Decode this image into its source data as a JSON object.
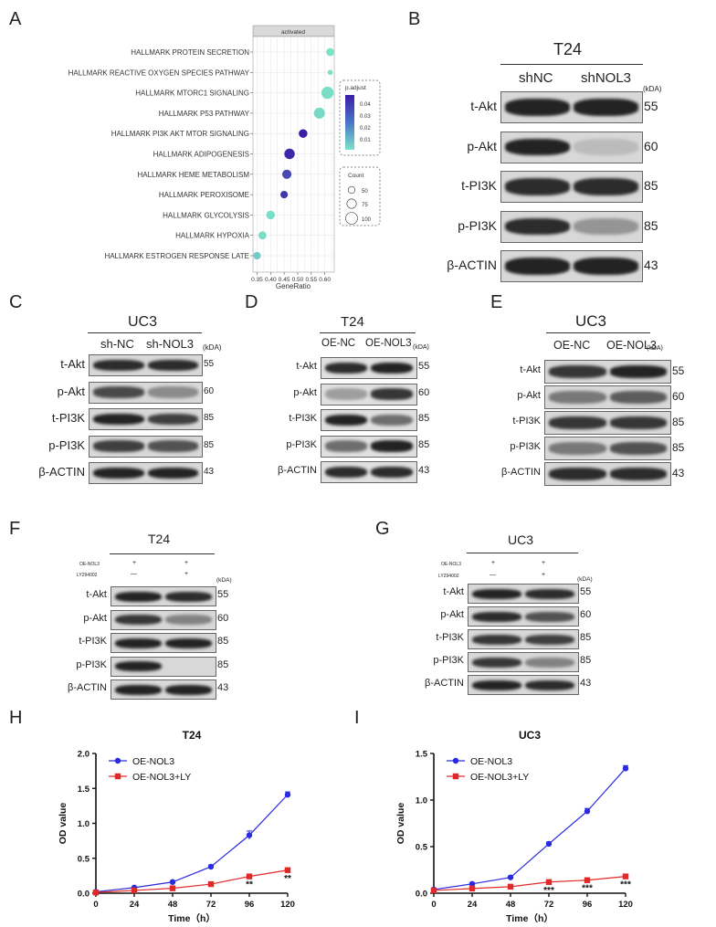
{
  "panels": {
    "A": "A",
    "B": "B",
    "C": "C",
    "D": "D",
    "E": "E",
    "F": "F",
    "G": "G",
    "H": "H",
    "I": "I"
  },
  "dotplot": {
    "facet_title": "activated",
    "pathways": [
      "HALLMARK PROTEIN SECRETION",
      "HALLMARK REACTIVE OXYGEN SPECIES PATHWAY",
      "HALLMARK MTORC1 SIGNALING",
      "HALLMARK P53 PATHWAY",
      "HALLMARK PI3K AKT MTOR SIGNALING",
      "HALLMARK ADIPOGENESIS",
      "HALLMARK HEME METABOLISM",
      "HALLMARK PEROXISOME",
      "HALLMARK GLYCOLYSIS",
      "HALLMARK HYPOXIA",
      "HALLMARK ESTROGEN RESPONSE LATE"
    ],
    "gene_ratio": [
      0.62,
      0.62,
      0.61,
      0.58,
      0.52,
      0.47,
      0.46,
      0.45,
      0.4,
      0.37,
      0.35
    ],
    "count": [
      60,
      35,
      95,
      85,
      65,
      80,
      70,
      55,
      65,
      60,
      55
    ],
    "p_adjust": [
      0.004,
      0.005,
      0.006,
      0.007,
      0.045,
      0.043,
      0.036,
      0.04,
      0.006,
      0.006,
      0.01
    ],
    "x_ticks": [
      "0.35",
      "0.40",
      "0.45",
      "0.50",
      "0.55",
      "0.60"
    ],
    "x_label": "GeneRatio",
    "legend_padjust_title": "p.adjust",
    "legend_padjust_ticks": [
      "0.04",
      "0.03",
      "0.02",
      "0.01"
    ],
    "legend_count_title": "Count",
    "legend_count_ticks": [
      "50",
      "75",
      "100"
    ],
    "color_low": "#4bd4b0",
    "color_high": "#3a1ea8"
  },
  "blotB": {
    "cell": "T24",
    "groups": [
      "shNC",
      "shNOL3"
    ],
    "kda_label": "(kDA)",
    "rows": [
      {
        "name": "t-Akt",
        "kda": "55"
      },
      {
        "name": "p-Akt",
        "kda": "60"
      },
      {
        "name": "t-PI3K",
        "kda": "85"
      },
      {
        "name": "p-PI3K",
        "kda": "85"
      },
      {
        "name": "β-ACTIN",
        "kda": "43"
      }
    ]
  },
  "blotC": {
    "cell": "UC3",
    "groups": [
      "sh-NC",
      "sh-NOL3"
    ],
    "kda_label": "(kDA)",
    "rows": [
      {
        "name": "t-Akt",
        "kda": "55"
      },
      {
        "name": "p-Akt",
        "kda": "60"
      },
      {
        "name": "t-PI3K",
        "kda": "85"
      },
      {
        "name": "p-PI3K",
        "kda": "85"
      },
      {
        "name": "β-ACTIN",
        "kda": "43"
      }
    ]
  },
  "blotD": {
    "cell": "T24",
    "groups": [
      "OE-NC",
      "OE-NOL3"
    ],
    "kda_label": "(kDA)",
    "rows": [
      {
        "name": "t-Akt",
        "kda": "55"
      },
      {
        "name": "p-Akt",
        "kda": "60"
      },
      {
        "name": "t-PI3K",
        "kda": "85"
      },
      {
        "name": "p-PI3K",
        "kda": "85"
      },
      {
        "name": "β-ACTIN",
        "kda": "43"
      }
    ]
  },
  "blotE": {
    "cell": "UC3",
    "groups": [
      "OE-NC",
      "OE-NOL3"
    ],
    "kda_label": "(kDA)",
    "rows": [
      {
        "name": "t-Akt",
        "kda": "55"
      },
      {
        "name": "p-Akt",
        "kda": "60"
      },
      {
        "name": "t-PI3K",
        "kda": "85"
      },
      {
        "name": "p-PI3K",
        "kda": "85"
      },
      {
        "name": "β-ACTIN",
        "kda": "43"
      }
    ]
  },
  "blotF": {
    "cell": "T24",
    "treat1": "OE-NOL3",
    "treat2": "LY294002",
    "treat1_vals": [
      "+",
      "+"
    ],
    "treat2_vals": [
      "—",
      "+"
    ],
    "kda_label": "(kDA)",
    "rows": [
      {
        "name": "t-Akt",
        "kda": "55"
      },
      {
        "name": "p-Akt",
        "kda": "60"
      },
      {
        "name": "t-PI3K",
        "kda": "85"
      },
      {
        "name": "p-PI3K",
        "kda": "85"
      },
      {
        "name": "β-ACTIN",
        "kda": "43"
      }
    ]
  },
  "blotG": {
    "cell": "UC3",
    "treat1": "OE-NOL3",
    "treat2": "LY294002",
    "treat1_vals": [
      "+",
      "+"
    ],
    "treat2_vals": [
      "—",
      "+"
    ],
    "kda_label": "(kDA)",
    "rows": [
      {
        "name": "t-Akt",
        "kda": "55"
      },
      {
        "name": "p-Akt",
        "kda": "60"
      },
      {
        "name": "t-PI3K",
        "kda": "85"
      },
      {
        "name": "p-PI3K",
        "kda": "85"
      },
      {
        "name": "β-ACTIN",
        "kda": "43"
      }
    ]
  },
  "chart_data": [
    {
      "type": "line",
      "title": "T24",
      "xlabel": "Time（h）",
      "ylabel": "OD value",
      "x": [
        0,
        24,
        48,
        72,
        96,
        120
      ],
      "xlim": [
        0,
        120
      ],
      "ylim": [
        0,
        2.0
      ],
      "x_ticks": [
        "0",
        "24",
        "48",
        "72",
        "96",
        "120"
      ],
      "y_ticks": [
        "0.0",
        "0.5",
        "1.0",
        "1.5",
        "2.0"
      ],
      "series": [
        {
          "name": "OE-NOL3",
          "values": [
            0.02,
            0.08,
            0.16,
            0.38,
            0.83,
            1.41
          ],
          "errors": [
            0.01,
            0.01,
            0.01,
            0.02,
            0.06,
            0.04
          ],
          "color": "#2a2ae0",
          "marker": "circle"
        },
        {
          "name": "OE-NOL3+LY",
          "values": [
            0.01,
            0.04,
            0.07,
            0.13,
            0.24,
            0.33
          ],
          "errors": [
            0.01,
            0.01,
            0.01,
            0.01,
            0.02,
            0.02
          ],
          "color": "#e02a2a",
          "marker": "square"
        }
      ],
      "annotations": [
        {
          "x": 96,
          "text": "**"
        },
        {
          "x": 120,
          "text": "**"
        }
      ],
      "legend": "top-left"
    },
    {
      "type": "line",
      "title": "UC3",
      "xlabel": "Time（h）",
      "ylabel": "OD value",
      "x": [
        0,
        24,
        48,
        72,
        96,
        120
      ],
      "xlim": [
        0,
        120
      ],
      "ylim": [
        0,
        1.5
      ],
      "x_ticks": [
        "0",
        "24",
        "48",
        "72",
        "96",
        "120"
      ],
      "y_ticks": [
        "0.0",
        "0.5",
        "1.0",
        "1.5"
      ],
      "series": [
        {
          "name": "OE-NOL3",
          "values": [
            0.04,
            0.1,
            0.17,
            0.53,
            0.88,
            1.34
          ],
          "errors": [
            0.01,
            0.01,
            0.01,
            0.02,
            0.03,
            0.03
          ],
          "color": "#2a2ae0",
          "marker": "circle"
        },
        {
          "name": "OE-NOL3+LY",
          "values": [
            0.03,
            0.05,
            0.07,
            0.12,
            0.14,
            0.18
          ],
          "errors": [
            0.01,
            0.01,
            0.01,
            0.01,
            0.01,
            0.01
          ],
          "color": "#e02a2a",
          "marker": "square"
        }
      ],
      "annotations": [
        {
          "x": 72,
          "text": "***"
        },
        {
          "x": 96,
          "text": "***"
        },
        {
          "x": 120,
          "text": "***"
        }
      ],
      "legend": "top-left"
    }
  ]
}
